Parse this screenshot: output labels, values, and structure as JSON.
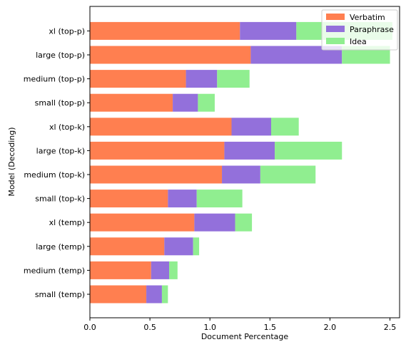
{
  "chart_data": {
    "type": "bar",
    "orientation": "horizontal",
    "stacked": true,
    "categories": [
      "small (temp)",
      "medium (temp)",
      "large (temp)",
      "xl (temp)",
      "small (top-k)",
      "medium (top-k)",
      "large (top-k)",
      "xl (top-k)",
      "small (top-p)",
      "medium (top-p)",
      "large (top-p)",
      "xl (top-p)"
    ],
    "series": [
      {
        "name": "Verbatim",
        "color": "#ff7f50",
        "values": [
          0.47,
          0.51,
          0.62,
          0.87,
          0.65,
          1.1,
          1.12,
          1.18,
          0.69,
          0.8,
          1.34,
          1.25
        ]
      },
      {
        "name": "Paraphrase",
        "color": "#9370db",
        "values": [
          0.13,
          0.15,
          0.24,
          0.34,
          0.24,
          0.32,
          0.42,
          0.33,
          0.21,
          0.26,
          0.76,
          0.47
        ]
      },
      {
        "name": "Idea",
        "color": "#90ee90",
        "values": [
          0.05,
          0.07,
          0.05,
          0.14,
          0.38,
          0.46,
          0.56,
          0.23,
          0.14,
          0.27,
          0.4,
          0.8
        ]
      }
    ],
    "xlabel": "Document Percentage",
    "ylabel": "Model (Decoding)",
    "xlim": [
      0,
      2.58
    ],
    "xticks": [
      "0.0",
      "0.5",
      "1.0",
      "1.5",
      "2.0",
      "2.5"
    ],
    "grid": false,
    "legend_position": "top-right"
  }
}
